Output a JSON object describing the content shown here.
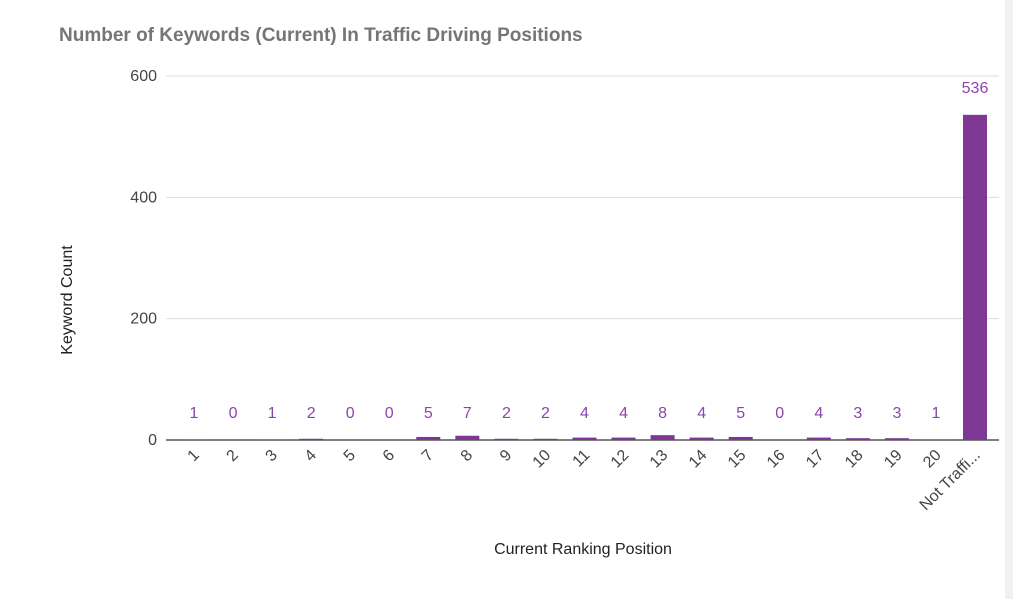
{
  "chart_data": {
    "type": "bar",
    "title": "Number of Keywords (Current) In Traffic Driving Positions",
    "xlabel": "Current Ranking Position",
    "ylabel": "Keyword Count",
    "categories": [
      "1",
      "2",
      "3",
      "4",
      "5",
      "6",
      "7",
      "8",
      "9",
      "10",
      "11",
      "12",
      "13",
      "14",
      "15",
      "16",
      "17",
      "18",
      "19",
      "20",
      "Not Traffi..."
    ],
    "values": [
      1,
      0,
      1,
      2,
      0,
      0,
      5,
      7,
      2,
      2,
      4,
      4,
      8,
      4,
      5,
      0,
      4,
      3,
      3,
      1,
      536
    ],
    "ylim": [
      0,
      600
    ],
    "yticks": [
      0,
      200,
      400,
      600
    ],
    "grid": true,
    "legend": "none",
    "colors": {
      "bar": "#7e3794",
      "label": "#8e44ad",
      "grid": "#dddddd",
      "axis": "#333333"
    }
  }
}
